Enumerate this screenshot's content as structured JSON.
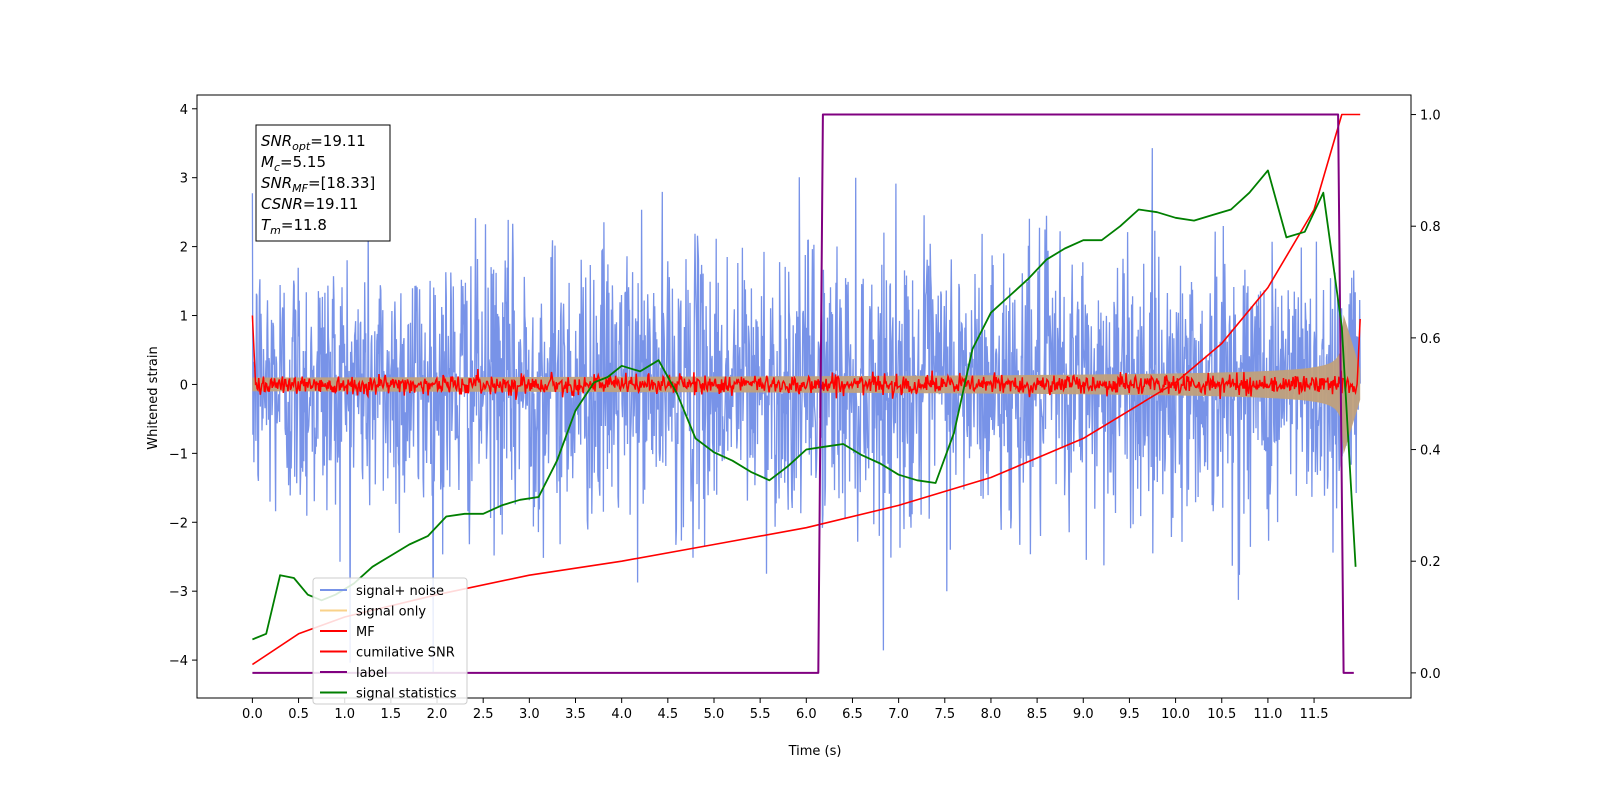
{
  "chart_data": {
    "type": "line",
    "xlabel": "Time (s)",
    "ylabel": "Whitened strain",
    "ylabel_right": "",
    "xlim": [
      -0.6,
      12.55
    ],
    "ylim": [
      -4.55,
      4.2
    ],
    "ylim_right": [
      -0.045,
      1.035
    ],
    "xticks": [
      0.0,
      0.5,
      1.0,
      1.5,
      2.0,
      2.5,
      3.0,
      3.5,
      4.0,
      4.5,
      5.0,
      5.5,
      6.0,
      6.5,
      7.0,
      7.5,
      8.0,
      8.5,
      9.0,
      9.5,
      10.0,
      10.5,
      11.0,
      11.5
    ],
    "xtick_labels": [
      "0.0",
      "0.5",
      "1.0",
      "1.5",
      "2.0",
      "2.5",
      "3.0",
      "3.5",
      "4.0",
      "4.5",
      "5.0",
      "5.5",
      "6.0",
      "6.5",
      "7.0",
      "7.5",
      "8.0",
      "8.5",
      "9.0",
      "9.5",
      "10.0",
      "10.5",
      "11.0",
      "11.5"
    ],
    "yticks_left": [
      4,
      3,
      2,
      1,
      0,
      -1,
      -2,
      -3,
      -4
    ],
    "ytick_labels_left": [
      "4",
      "3",
      "2",
      "1",
      "0",
      "−1",
      "−2",
      "−3",
      "−4"
    ],
    "yticks_right": [
      1.0,
      0.8,
      0.6,
      0.4,
      0.2,
      0.0
    ],
    "ytick_labels_right": [
      "1.0",
      "0.8",
      "0.6",
      "0.4",
      "0.2",
      "0.0"
    ],
    "grid": false,
    "legend_position": "lower-left",
    "colors": {
      "signal_noise": "#7893e8",
      "signal_only": "#c0a07c",
      "signal_only_legend": "#f9d28a",
      "mf": "#ff0000",
      "cumulative_snr": "#ff0000",
      "label": "#800080",
      "statistics": "#007f00"
    },
    "series": [
      {
        "name": "signal+ noise",
        "axis": "left",
        "description_kind": "noise band",
        "x_range": [
          0.0,
          12.0
        ],
        "approx_sigma": 1.0
      },
      {
        "name": "signal only",
        "axis": "left",
        "description_kind": "chirp envelope",
        "x_range": [
          0.0,
          12.0
        ],
        "amplitude_start": 0.1,
        "amplitude_peak": 1.1,
        "peak_time": 11.8
      },
      {
        "name": "MF",
        "axis": "left",
        "x_range": [
          0.0,
          12.0
        ],
        "baseline": 0.0,
        "jitter": 0.07,
        "edge_values": [
          1.0,
          0.95
        ]
      },
      {
        "name": "cumilative SNR",
        "axis": "right",
        "x": [
          0.0,
          0.5,
          1.0,
          2.0,
          3.0,
          4.0,
          5.0,
          6.0,
          7.0,
          8.0,
          9.0,
          10.0,
          10.5,
          11.0,
          11.5,
          11.8,
          12.0
        ],
        "values": [
          0.015,
          0.07,
          0.1,
          0.14,
          0.175,
          0.2,
          0.23,
          0.26,
          0.3,
          0.35,
          0.42,
          0.52,
          0.59,
          0.69,
          0.83,
          1.0,
          1.0
        ]
      },
      {
        "name": "label",
        "axis": "right",
        "x": [
          0.0,
          6.13,
          6.18,
          11.76,
          11.82,
          11.93
        ],
        "values": [
          0.0,
          0.0,
          1.0,
          1.0,
          0.0,
          0.0
        ]
      },
      {
        "name": "signal statistics",
        "axis": "right",
        "x": [
          0.0,
          0.15,
          0.3,
          0.45,
          0.6,
          0.75,
          0.9,
          1.1,
          1.3,
          1.5,
          1.7,
          1.9,
          2.1,
          2.3,
          2.5,
          2.7,
          2.9,
          3.1,
          3.3,
          3.5,
          3.7,
          3.85,
          4.0,
          4.2,
          4.4,
          4.6,
          4.8,
          5.0,
          5.2,
          5.4,
          5.6,
          5.8,
          6.0,
          6.2,
          6.4,
          6.6,
          6.8,
          7.0,
          7.2,
          7.4,
          7.6,
          7.8,
          8.0,
          8.2,
          8.4,
          8.6,
          8.8,
          9.0,
          9.2,
          9.4,
          9.6,
          9.8,
          10.0,
          10.2,
          10.4,
          10.6,
          10.8,
          11.0,
          11.2,
          11.4,
          11.6,
          11.8,
          11.95
        ],
        "values": [
          0.06,
          0.07,
          0.175,
          0.17,
          0.14,
          0.13,
          0.14,
          0.16,
          0.19,
          0.21,
          0.23,
          0.245,
          0.28,
          0.285,
          0.285,
          0.3,
          0.31,
          0.315,
          0.38,
          0.47,
          0.52,
          0.53,
          0.55,
          0.54,
          0.56,
          0.5,
          0.42,
          0.395,
          0.38,
          0.36,
          0.345,
          0.37,
          0.4,
          0.405,
          0.41,
          0.39,
          0.375,
          0.355,
          0.345,
          0.34,
          0.43,
          0.58,
          0.645,
          0.675,
          0.705,
          0.74,
          0.76,
          0.775,
          0.775,
          0.8,
          0.83,
          0.825,
          0.815,
          0.81,
          0.82,
          0.83,
          0.86,
          0.9,
          0.78,
          0.79,
          0.86,
          0.62,
          0.19
        ]
      }
    ],
    "legend": [
      "signal+ noise",
      "signal only",
      "MF",
      "cumilative SNR",
      "label",
      "signal statistics"
    ],
    "annotation": {
      "lines": [
        {
          "main": "SNR",
          "sub": "opt",
          "value": "=19.11"
        },
        {
          "main": "M",
          "sub": "c",
          "value": "=5.15"
        },
        {
          "main": "SNR",
          "sub": "MF",
          "value": "=[18.33]"
        },
        {
          "main": "CSNR",
          "sub": "",
          "value": "=19.11"
        },
        {
          "main": "T",
          "sub": "m",
          "value": "=11.8"
        }
      ]
    }
  }
}
